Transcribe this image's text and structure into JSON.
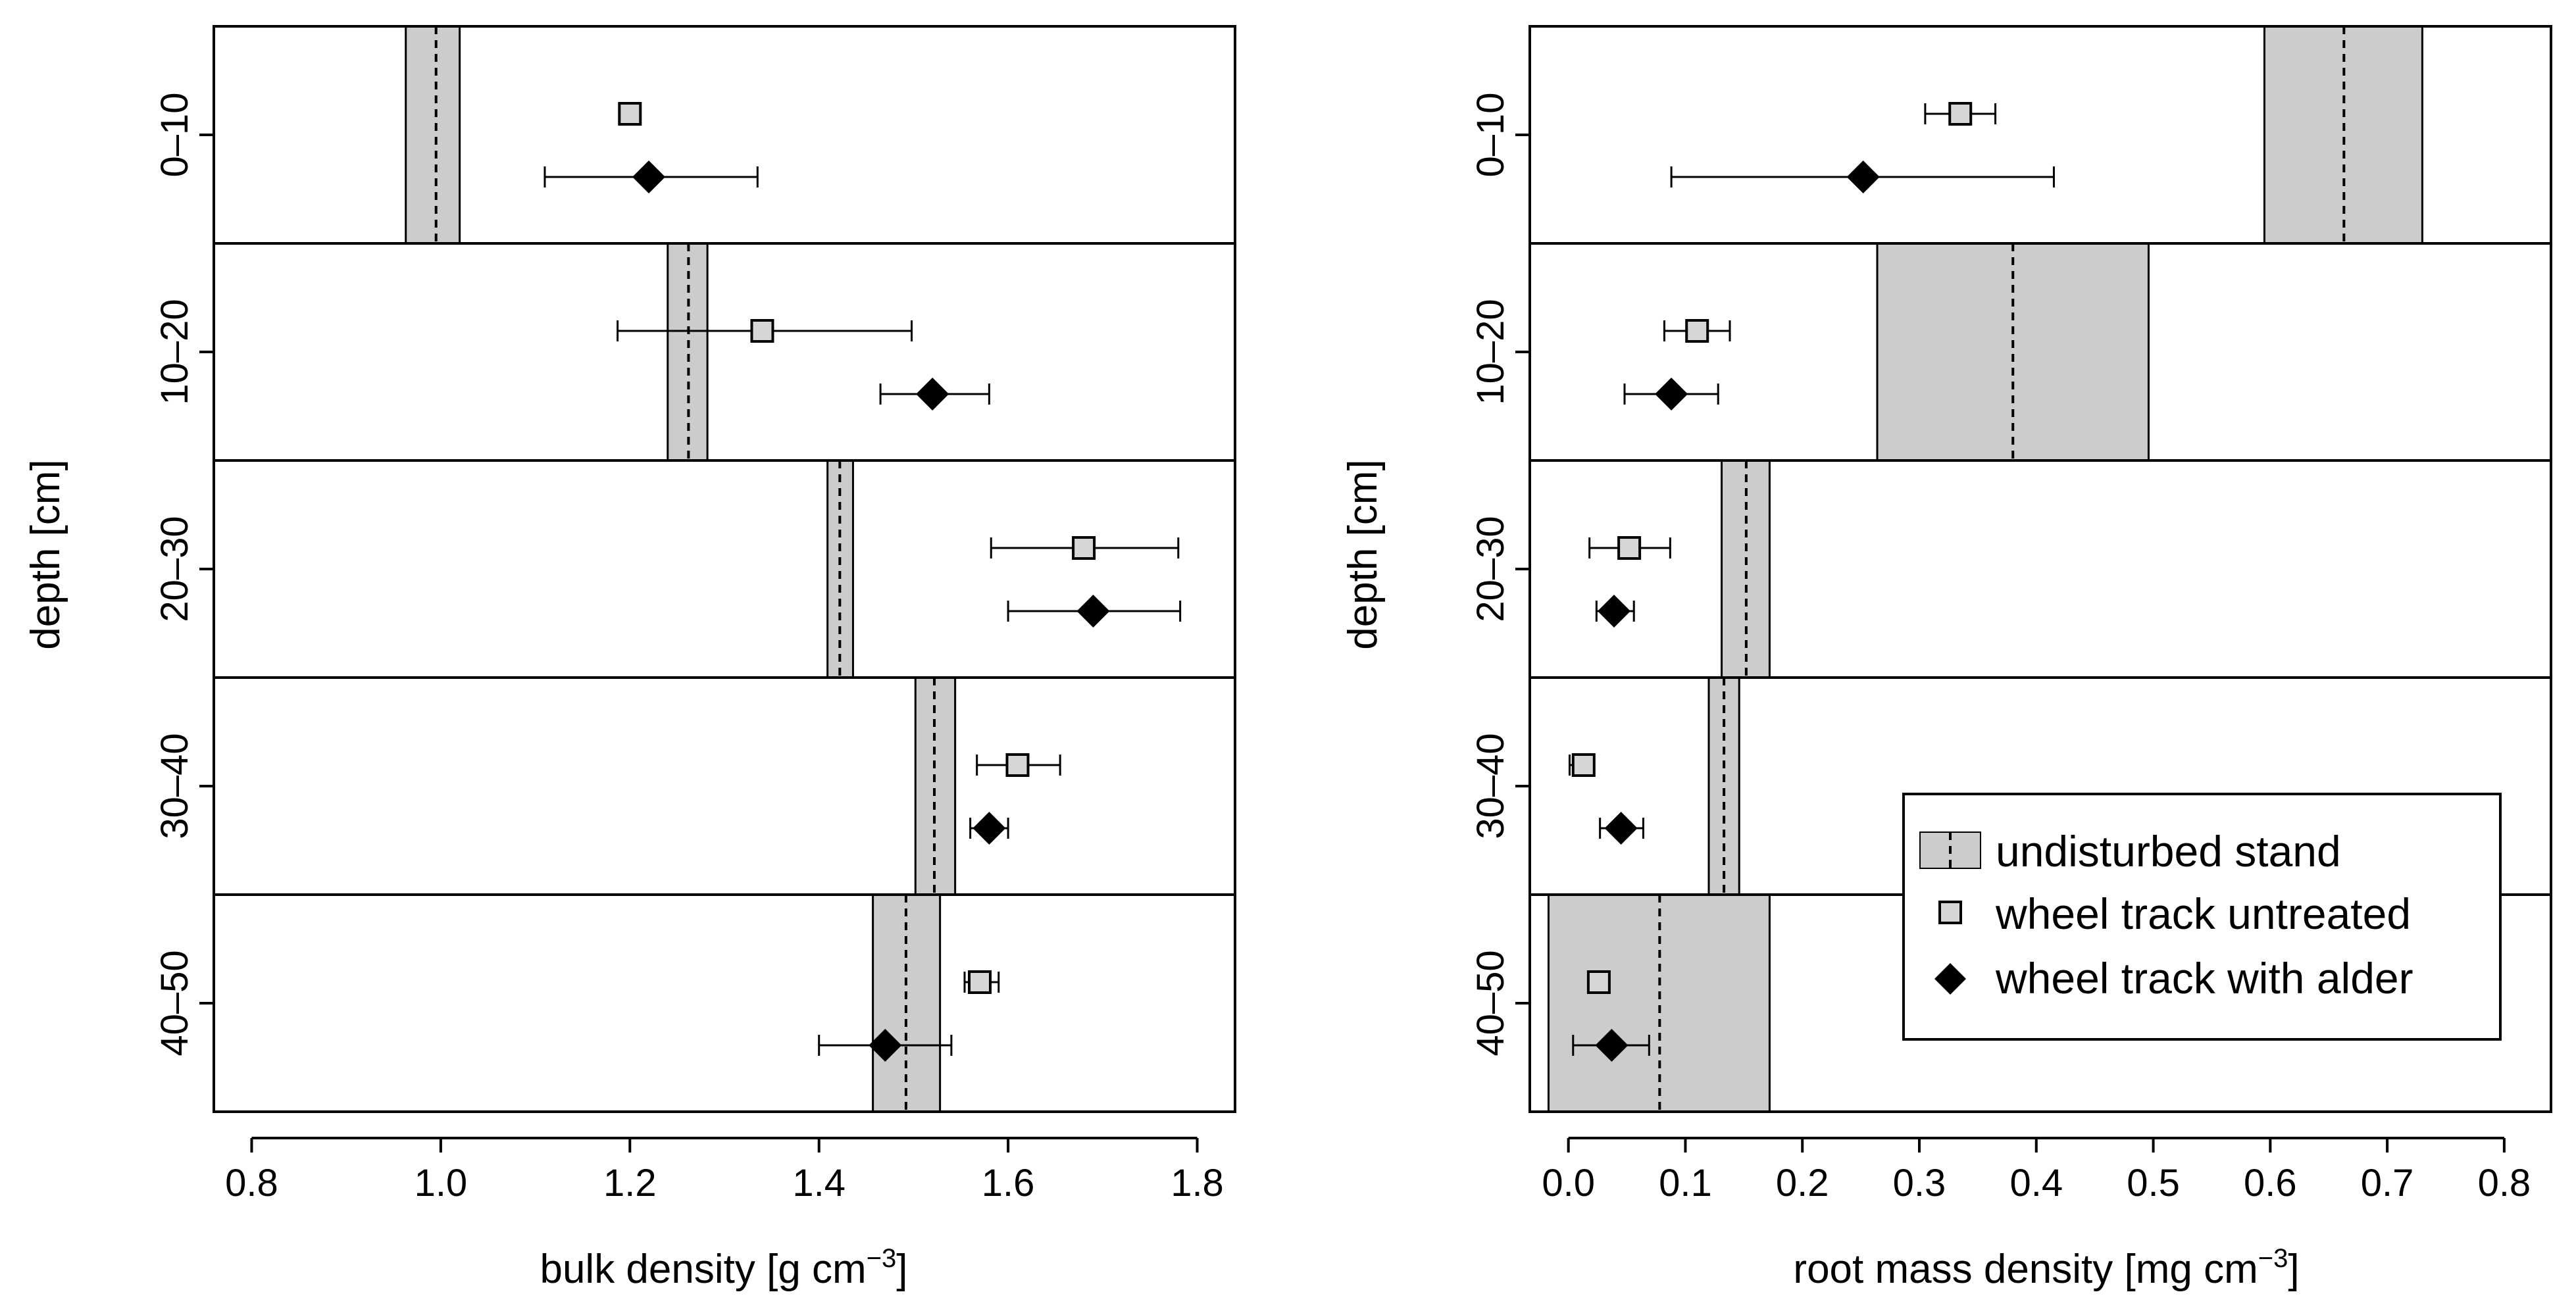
{
  "legend": {
    "items": [
      {
        "label": "undisturbed stand",
        "symbol": "band"
      },
      {
        "label": "wheel track untreated",
        "symbol": "square"
      },
      {
        "label": "wheel track with alder",
        "symbol": "diamond"
      }
    ]
  },
  "chart_data": [
    {
      "type": "scatter",
      "panel": "left",
      "xlabel_main": "bulk density  [g cm",
      "xlabel_exp": "−3",
      "xlabel_end": "]",
      "ylabel": "depth [cm]",
      "xlim": [
        0.76,
        1.84
      ],
      "xticks": [
        0.8,
        1.0,
        1.2,
        1.4,
        1.6,
        1.8
      ],
      "xtick_labels": [
        "0.8",
        "1.0",
        "1.2",
        "1.4",
        "1.6",
        "1.8"
      ],
      "categories": [
        "0–10",
        "10–20",
        "20–30",
        "30–40",
        "40–50"
      ],
      "undisturbed_stand": [
        {
          "mean": 0.995,
          "low": 0.963,
          "high": 1.02
        },
        {
          "mean": 1.262,
          "low": 1.24,
          "high": 1.282
        },
        {
          "mean": 1.422,
          "low": 1.409,
          "high": 1.436
        },
        {
          "mean": 1.522,
          "low": 1.502,
          "high": 1.544
        },
        {
          "mean": 1.492,
          "low": 1.457,
          "high": 1.528
        }
      ],
      "series": [
        {
          "name": "wheel track untreated",
          "marker": "square",
          "values": [
            {
              "x": 1.2,
              "low": null,
              "high": null
            },
            {
              "x": 1.34,
              "low": 1.187,
              "high": 1.498
            },
            {
              "x": 1.68,
              "low": 1.582,
              "high": 1.78
            },
            {
              "x": 1.61,
              "low": 1.567,
              "high": 1.655
            },
            {
              "x": 1.57,
              "low": 1.554,
              "high": 1.59
            }
          ]
        },
        {
          "name": "wheel track with alder",
          "marker": "diamond",
          "values": [
            {
              "x": 1.22,
              "low": 1.11,
              "high": 1.335
            },
            {
              "x": 1.52,
              "low": 1.465,
              "high": 1.58
            },
            {
              "x": 1.69,
              "low": 1.6,
              "high": 1.782
            },
            {
              "x": 1.58,
              "low": 1.56,
              "high": 1.6
            },
            {
              "x": 1.47,
              "low": 1.4,
              "high": 1.54
            }
          ]
        }
      ]
    },
    {
      "type": "scatter",
      "panel": "right",
      "xlabel_main": "root mass density  [mg cm",
      "xlabel_exp": "−3",
      "xlabel_end": "]",
      "ylabel": "depth [cm]",
      "xlim": [
        -0.033,
        0.84
      ],
      "xticks": [
        0.0,
        0.1,
        0.2,
        0.3,
        0.4,
        0.5,
        0.6,
        0.7,
        0.8
      ],
      "xtick_labels": [
        "0.0",
        "0.1",
        "0.2",
        "0.3",
        "0.4",
        "0.5",
        "0.6",
        "0.7",
        "0.8"
      ],
      "categories": [
        "0–10",
        "10–20",
        "20–30",
        "30–40",
        "40–50"
      ],
      "undisturbed_stand": [
        {
          "mean": 0.663,
          "low": 0.595,
          "high": 0.73
        },
        {
          "mean": 0.38,
          "low": 0.264,
          "high": 0.496
        },
        {
          "mean": 0.152,
          "low": 0.131,
          "high": 0.172
        },
        {
          "mean": 0.133,
          "low": 0.12,
          "high": 0.146
        },
        {
          "mean": 0.078,
          "low": -0.017,
          "high": 0.172
        }
      ],
      "series": [
        {
          "name": "wheel track untreated",
          "marker": "square",
          "values": [
            {
              "x": 0.335,
              "low": 0.305,
              "high": 0.365
            },
            {
              "x": 0.11,
              "low": 0.082,
              "high": 0.138
            },
            {
              "x": 0.052,
              "low": 0.018,
              "high": 0.087
            },
            {
              "x": 0.013,
              "low": 0.001,
              "high": 0.022
            },
            {
              "x": 0.026,
              "low": 0.018,
              "high": 0.034
            }
          ]
        },
        {
          "name": "wheel track with alder",
          "marker": "diamond",
          "values": [
            {
              "x": 0.252,
              "low": 0.088,
              "high": 0.415
            },
            {
              "x": 0.088,
              "low": 0.048,
              "high": 0.128
            },
            {
              "x": 0.039,
              "low": 0.024,
              "high": 0.056
            },
            {
              "x": 0.045,
              "low": 0.027,
              "high": 0.064
            },
            {
              "x": 0.037,
              "low": 0.004,
              "high": 0.069
            }
          ]
        }
      ]
    }
  ]
}
